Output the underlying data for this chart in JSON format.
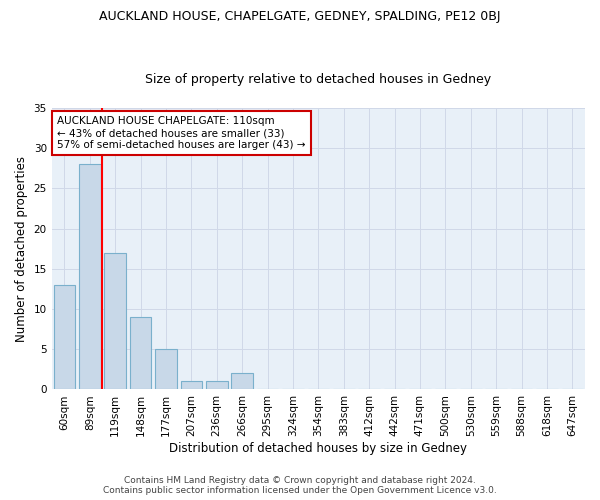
{
  "title": "AUCKLAND HOUSE, CHAPELGATE, GEDNEY, SPALDING, PE12 0BJ",
  "subtitle": "Size of property relative to detached houses in Gedney",
  "xlabel": "Distribution of detached houses by size in Gedney",
  "ylabel": "Number of detached properties",
  "bins": [
    "60sqm",
    "89sqm",
    "119sqm",
    "148sqm",
    "177sqm",
    "207sqm",
    "236sqm",
    "266sqm",
    "295sqm",
    "324sqm",
    "354sqm",
    "383sqm",
    "412sqm",
    "442sqm",
    "471sqm",
    "500sqm",
    "530sqm",
    "559sqm",
    "588sqm",
    "618sqm",
    "647sqm"
  ],
  "values": [
    13,
    28,
    17,
    9,
    5,
    1,
    1,
    2,
    0,
    0,
    0,
    0,
    0,
    0,
    0,
    0,
    0,
    0,
    0,
    0,
    0
  ],
  "bar_color": "#c8d8e8",
  "bar_edge_color": "#7ab0cc",
  "red_line_x": 1.5,
  "annotation_text": "AUCKLAND HOUSE CHAPELGATE: 110sqm\n← 43% of detached houses are smaller (33)\n57% of semi-detached houses are larger (43) →",
  "annotation_box_color": "#ffffff",
  "annotation_box_edge": "#cc0000",
  "ylim": [
    0,
    35
  ],
  "yticks": [
    0,
    5,
    10,
    15,
    20,
    25,
    30,
    35
  ],
  "grid_color": "#d0d8e8",
  "background_color": "#e8f0f8",
  "footer_line1": "Contains HM Land Registry data © Crown copyright and database right 2024.",
  "footer_line2": "Contains public sector information licensed under the Open Government Licence v3.0.",
  "title_fontsize": 9,
  "subtitle_fontsize": 9,
  "xlabel_fontsize": 8.5,
  "ylabel_fontsize": 8.5,
  "annotation_fontsize": 7.5,
  "tick_fontsize": 7.5,
  "footer_fontsize": 6.5
}
